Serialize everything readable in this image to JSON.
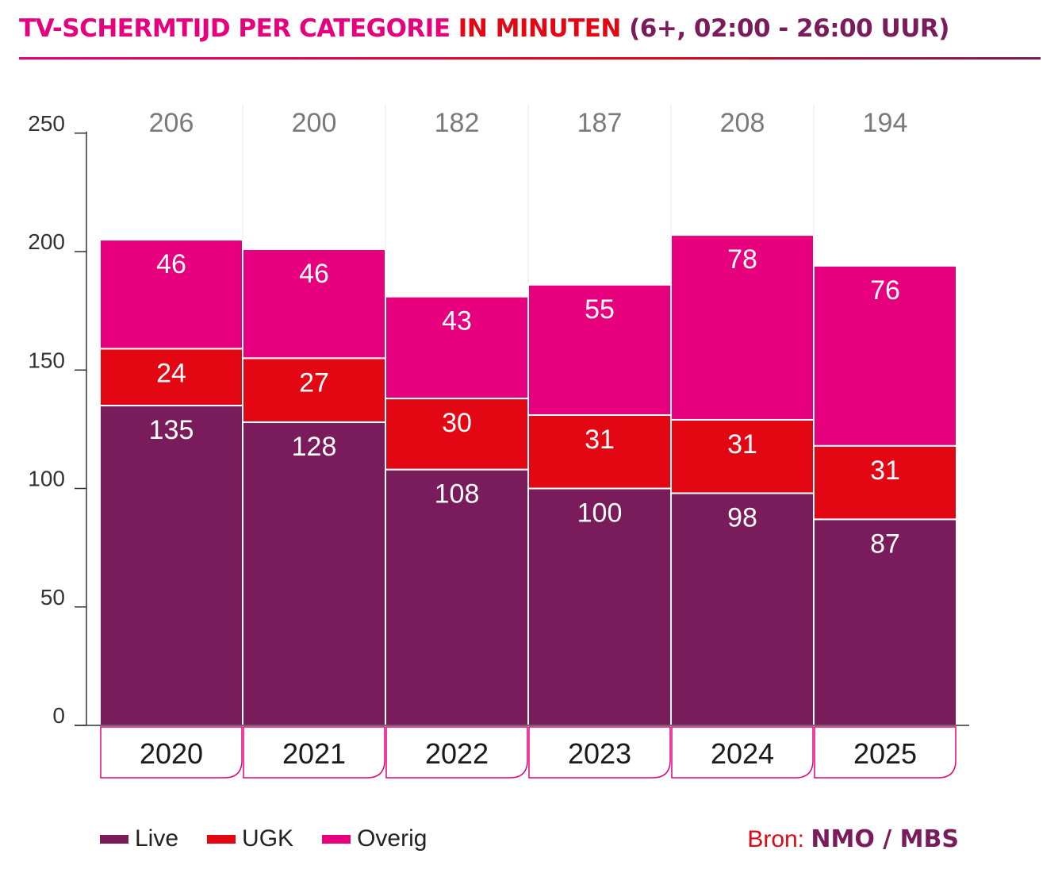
{
  "title": {
    "part1": "TV-SCHERMTIJD PER CATEGORIE ",
    "part2": "IN MINUTEN ",
    "part3": "(6+, 02:00 - 26:00 UUR)"
  },
  "colors": {
    "live": "#7a1b5b",
    "ugk": "#e30613",
    "overig": "#e6007e",
    "axis": "#333333",
    "total_label": "#7a7a7a",
    "grid": "#e6e6e6",
    "year_box_border": "#e6007e"
  },
  "legend": {
    "items": [
      {
        "label": "Live",
        "color": "#7a1b5b"
      },
      {
        "label": "UGK",
        "color": "#e30613"
      },
      {
        "label": "Overig",
        "color": "#e6007e"
      }
    ]
  },
  "source": {
    "label": "Bron: ",
    "value": "NMO / MBS"
  },
  "chart_data": {
    "type": "bar",
    "stacked": true,
    "title": "TV-SCHERMTIJD PER CATEGORIE IN MINUTEN (6+, 02:00 - 26:00 UUR)",
    "categories": [
      "2020",
      "2021",
      "2022",
      "2023",
      "2024",
      "2025"
    ],
    "series": [
      {
        "name": "Live",
        "values": [
          135,
          128,
          108,
          100,
          98,
          87
        ]
      },
      {
        "name": "UGK",
        "values": [
          24,
          27,
          30,
          31,
          31,
          31
        ]
      },
      {
        "name": "Overig",
        "values": [
          46,
          46,
          43,
          55,
          78,
          76
        ]
      }
    ],
    "totals": [
      206,
      200,
      182,
      187,
      208,
      194
    ],
    "yticks": [
      0,
      50,
      100,
      150,
      200,
      250
    ],
    "ylim": [
      0,
      250
    ],
    "xlabel": "",
    "ylabel": ""
  }
}
